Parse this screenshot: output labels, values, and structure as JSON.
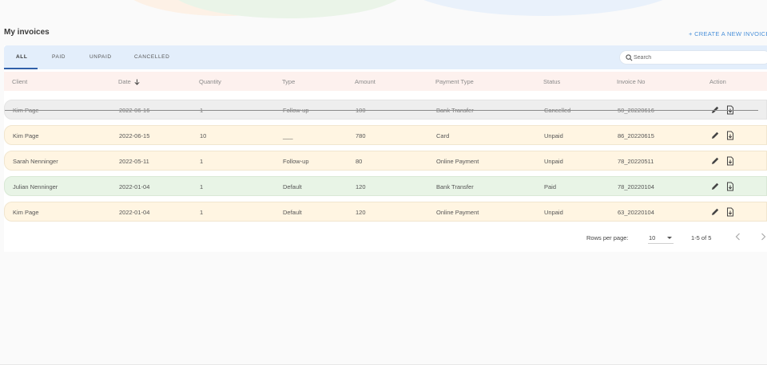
{
  "page": {
    "title": "My invoices",
    "create_label": "+ CREATE A NEW INVOICE"
  },
  "tabs": [
    {
      "label": "ALL",
      "active": true
    },
    {
      "label": "PAID",
      "active": false
    },
    {
      "label": "UNPAID",
      "active": false
    },
    {
      "label": "CANCELLED",
      "active": false
    }
  ],
  "search": {
    "placeholder": "Search",
    "value": ""
  },
  "table": {
    "columns": [
      "Client",
      "Date",
      "Quantity",
      "Type",
      "Amount",
      "Payment Type",
      "Status",
      "Invoice No",
      "Action"
    ],
    "sort_column": "Date",
    "sort_direction": "descending",
    "rows": [
      {
        "client": "Kim Page",
        "date": "2022-06-16",
        "quantity": "1",
        "type": "Follow-up",
        "amount": "100",
        "payment_type": "Bank Transfer",
        "status": "Cancelled",
        "invoice_no": "50_20220616"
      },
      {
        "client": "Kim Page",
        "date": "2022-06-15",
        "quantity": "10",
        "type": "___",
        "amount": "780",
        "payment_type": "Card",
        "status": "Unpaid",
        "invoice_no": "86_20220615"
      },
      {
        "client": "Sarah Nenninger",
        "date": "2022-05-11",
        "quantity": "1",
        "type": "Follow-up",
        "amount": "80",
        "payment_type": "Online Payment",
        "status": "Unpaid",
        "invoice_no": "78_20220511"
      },
      {
        "client": "Julian Nenninger",
        "date": "2022-01-04",
        "quantity": "1",
        "type": "Default",
        "amount": "120",
        "payment_type": "Bank Transfer",
        "status": "Paid",
        "invoice_no": "78_20220104"
      },
      {
        "client": "Kim Page",
        "date": "2022-01-04",
        "quantity": "1",
        "type": "Default",
        "amount": "120",
        "payment_type": "Online Payment",
        "status": "Unpaid",
        "invoice_no": "63_20220104"
      }
    ]
  },
  "pagination": {
    "rows_per_page_label": "Rows per page:",
    "rows_per_page": "10",
    "range": "1-5 of 5"
  },
  "icons": {
    "row_actions": [
      "edit-pencil-icon",
      "download-document-icon"
    ],
    "search": "search-icon"
  },
  "colors": {
    "accent": "#4a90d9",
    "tabs_bg": "#e3eefb",
    "header_bg": "#fdf1ee",
    "unpaid_bg": "#fff5e2",
    "paid_bg": "#e8f4e6",
    "cancelled_bg": "#eeeeee"
  }
}
